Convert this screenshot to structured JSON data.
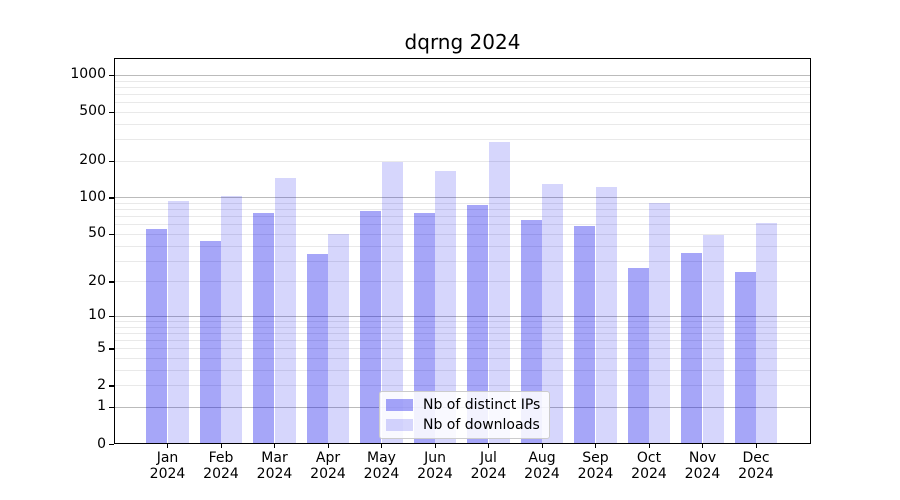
{
  "title": "dqrng 2024",
  "chart_data": {
    "type": "bar",
    "title": "dqrng 2024",
    "categories": [
      {
        "month": "Jan",
        "year": "2024"
      },
      {
        "month": "Feb",
        "year": "2024"
      },
      {
        "month": "Mar",
        "year": "2024"
      },
      {
        "month": "Apr",
        "year": "2024"
      },
      {
        "month": "May",
        "year": "2024"
      },
      {
        "month": "Jun",
        "year": "2024"
      },
      {
        "month": "Jul",
        "year": "2024"
      },
      {
        "month": "Aug",
        "year": "2024"
      },
      {
        "month": "Sep",
        "year": "2024"
      },
      {
        "month": "Oct",
        "year": "2024"
      },
      {
        "month": "Nov",
        "year": "2024"
      },
      {
        "month": "Dec",
        "year": "2024"
      }
    ],
    "series": [
      {
        "name": "Nb of distinct IPs",
        "color": "rgba(0,0,235,0.35)",
        "values": [
          55,
          44,
          74,
          34,
          77,
          74,
          86,
          65,
          58,
          26,
          35,
          24
        ]
      },
      {
        "name": "Nb of downloads",
        "color": "rgba(0,0,235,0.16)",
        "values": [
          93,
          103,
          145,
          50,
          195,
          164,
          285,
          128,
          122,
          90,
          49,
          62
        ]
      }
    ],
    "y_axis": {
      "scale": "log1p",
      "tick_labels": [
        0,
        1,
        2,
        5,
        10,
        20,
        50,
        100,
        200,
        500,
        1000
      ],
      "top_value": 1360
    },
    "grid": {
      "major_values": [
        1,
        10,
        100,
        1000
      ],
      "minor_values": [
        2,
        3,
        4,
        5,
        6,
        7,
        8,
        9,
        20,
        30,
        40,
        50,
        60,
        70,
        80,
        90,
        200,
        300,
        400,
        500,
        600,
        700,
        800,
        900
      ],
      "major_color": "#bbbbbb",
      "minor_color": "#e9e9e9"
    },
    "legend_position": "lower center",
    "grid_on": true
  }
}
